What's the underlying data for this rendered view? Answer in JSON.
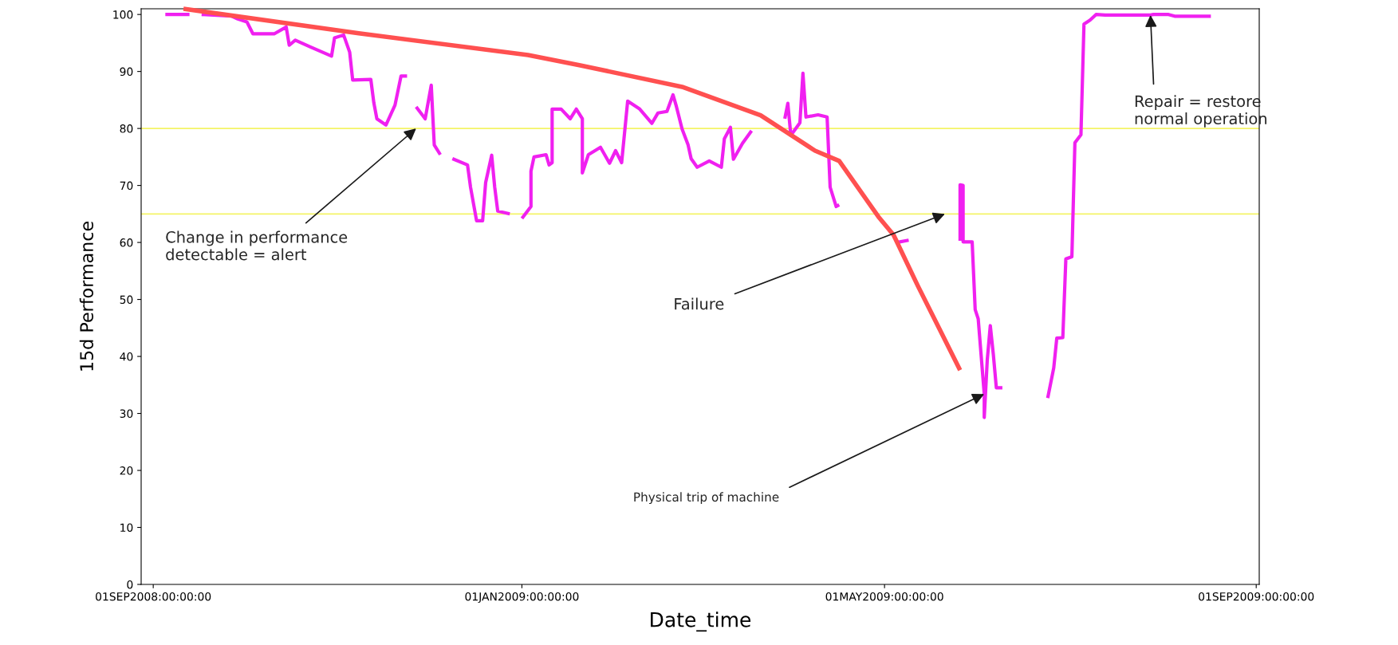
{
  "chart_data": {
    "type": "line",
    "xlabel": "Date_time",
    "ylabel": "15d Performance",
    "xlim": [
      "2008-08-28",
      "2009-09-02"
    ],
    "xticks": [
      {
        "value": "2008-09-01",
        "label": "01SEP2008:00:00:00"
      },
      {
        "value": "2009-01-01",
        "label": "01JAN2009:00:00:00"
      },
      {
        "value": "2009-05-01",
        "label": "01MAY2009:00:00:00"
      },
      {
        "value": "2009-09-01",
        "label": "01SEP2009:00:00:00"
      }
    ],
    "ylim": [
      0,
      101
    ],
    "yticks": [
      0,
      10,
      20,
      30,
      40,
      50,
      60,
      70,
      80,
      90,
      100
    ],
    "grid": false,
    "marker": "none",
    "line_style": "solid",
    "series": [
      {
        "color": "#f020f0",
        "x": [
          "2008-09-05",
          "2008-09-13",
          "2008-09-15",
          "2008-09-17",
          "2008-09-27",
          "2008-09-29",
          "2008-10-02",
          "2008-10-04",
          "2008-10-11",
          "2008-10-15",
          "2008-10-16",
          "2008-10-18",
          "2008-10-23",
          "2008-10-30",
          "2008-10-31",
          "2008-11-03",
          "2008-11-05",
          "2008-11-06",
          "2008-11-12",
          "2008-11-13",
          "2008-11-14",
          "2008-11-17",
          "2008-11-20",
          "2008-11-22",
          "2008-11-24",
          "2008-11-26",
          "2008-11-27",
          "2008-11-30",
          "2008-12-02",
          "2008-12-03",
          "2008-12-05",
          "2008-12-07",
          "2008-12-09",
          "2008-12-14",
          "2008-12-15",
          "2008-12-17",
          "2008-12-19",
          "2008-12-20",
          "2008-12-22",
          "2008-12-23",
          "2008-12-24",
          "2008-12-28",
          "2008-12-30",
          "2009-01-01",
          "2009-01-04",
          "2009-01-04",
          "2009-01-05",
          "2009-01-09",
          "2009-01-10",
          "2009-01-11",
          "2009-01-11",
          "2009-01-14",
          "2009-01-17",
          "2009-01-19",
          "2009-01-21",
          "2009-01-21",
          "2009-01-23",
          "2009-01-27",
          "2009-01-30",
          "2009-02-01",
          "2009-02-03",
          "2009-02-05",
          "2009-02-07",
          "2009-02-09",
          "2009-02-13",
          "2009-02-15",
          "2009-02-18",
          "2009-02-20",
          "2009-02-21",
          "2009-02-23",
          "2009-02-25",
          "2009-02-26",
          "2009-02-28",
          "2009-03-04",
          "2009-03-08",
          "2009-03-09",
          "2009-03-11",
          "2009-03-12",
          "2009-03-15",
          "2009-03-18",
          "2009-03-23",
          "2009-03-29",
          "2009-03-30",
          "2009-03-31",
          "2009-04-03",
          "2009-04-04",
          "2009-04-05",
          "2009-04-09",
          "2009-04-12",
          "2009-04-13",
          "2009-04-15",
          "2009-04-16",
          "2009-04-26",
          "2009-05-05",
          "2009-05-09",
          "2009-05-14",
          "2009-05-26",
          "2009-05-26",
          "2009-05-27",
          "2009-05-27",
          "2009-05-30",
          "2009-05-31",
          "2009-06-01",
          "2009-06-03",
          "2009-06-03",
          "2009-06-04",
          "2009-06-05",
          "2009-06-06",
          "2009-06-07",
          "2009-06-09",
          "2009-06-16",
          "2009-06-24",
          "2009-06-26",
          "2009-06-27",
          "2009-06-29",
          "2009-06-30",
          "2009-07-02",
          "2009-07-03",
          "2009-07-05",
          "2009-07-06",
          "2009-07-08",
          "2009-07-10",
          "2009-07-13",
          "2009-07-28",
          "2009-07-29",
          "2009-08-03",
          "2009-08-05",
          "2009-08-17"
        ],
        "values": [
          100,
          100,
          null,
          100,
          99.7,
          99.2,
          98.7,
          96.6,
          96.6,
          97.8,
          94.6,
          95.5,
          94.3,
          92.7,
          95.9,
          96.4,
          93.4,
          88.5,
          88.6,
          84.5,
          81.7,
          80.6,
          84.1,
          89.2,
          89.2,
          null,
          83.8,
          81.7,
          87.6,
          77.1,
          75.4,
          null,
          74.7,
          73.6,
          69.7,
          63.8,
          63.8,
          70.5,
          75.3,
          69.7,
          65.5,
          65,
          null,
          64.2,
          66.3,
          72.5,
          75,
          75.4,
          73.6,
          74,
          83.4,
          83.4,
          81.7,
          83.4,
          81.7,
          72.2,
          75.4,
          76.7,
          73.9,
          76.1,
          74,
          84.8,
          84.1,
          83.4,
          80.9,
          82.7,
          83,
          85.9,
          84.1,
          79.9,
          77.1,
          74.7,
          73.2,
          74.3,
          73.2,
          78.2,
          80.2,
          74.6,
          77.4,
          79.6,
          null,
          81.7,
          84.4,
          78.8,
          81,
          89.7,
          82,
          82.4,
          82,
          69.7,
          66.3,
          66.6,
          null,
          60,
          60.4,
          null,
          60.3,
          70.1,
          70,
          60.1,
          60.1,
          48.2,
          46.6,
          33.4,
          29.3,
          39.4,
          45.4,
          40.4,
          34.5,
          34.5,
          null,
          32.7,
          38,
          43.2,
          43.3,
          57.1,
          57.5,
          77.5,
          78.9,
          98.3,
          99,
          100,
          99.9,
          99.9,
          100,
          100,
          99.7,
          99.7
        ]
      },
      {
        "color": "#ff5050",
        "x": [
          "2008-09-11",
          "2008-11-08",
          "2009-01-03",
          "2009-01-20",
          "2009-02-23",
          "2009-03-21",
          "2009-04-08",
          "2009-04-16",
          "2009-04-29",
          "2009-05-04",
          "2009-05-12",
          "2009-05-19",
          "2009-05-26"
        ],
        "values": [
          101,
          96.7,
          92.9,
          91.1,
          87.3,
          82.3,
          76.1,
          74.3,
          64.5,
          61.3,
          52.4,
          45,
          37.6
        ]
      }
    ],
    "ref_lines": [
      {
        "axis": "y",
        "value": 80,
        "color": "#f4f466"
      },
      {
        "axis": "y",
        "value": 65,
        "color": "#f4f466"
      }
    ],
    "annotations": [
      {
        "text": "Change in performance\ndetectable = alert",
        "x": "2008-11-27",
        "y": 80
      },
      {
        "text": "Failure",
        "x": "2009-05-21",
        "y": 65
      },
      {
        "text": "Physical trip of machine",
        "x": "2009-06-03",
        "y": 33.4
      },
      {
        "text": "Repair = restore\nnormal operation",
        "x": "2009-07-28",
        "y": 99.9
      }
    ]
  }
}
